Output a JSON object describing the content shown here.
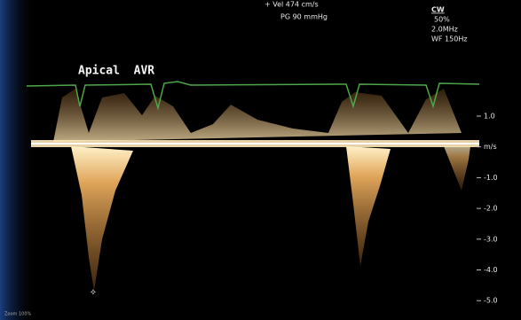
{
  "header": {
    "velocity": "+  Vel    474 cm/s",
    "gradient": "PG    90 mmHg"
  },
  "settings": {
    "mode": "CW",
    "power": "50%",
    "frequency": "2.0MHz",
    "wall_filter": "WF 150Hz"
  },
  "annotation": "Apical  AVR",
  "scale": {
    "labels": [
      "1.0",
      "m/s",
      "-1.0",
      "-2.0",
      "-3.0",
      "-4.0",
      "-5.0"
    ]
  },
  "footer": "Zoom 100%"
}
